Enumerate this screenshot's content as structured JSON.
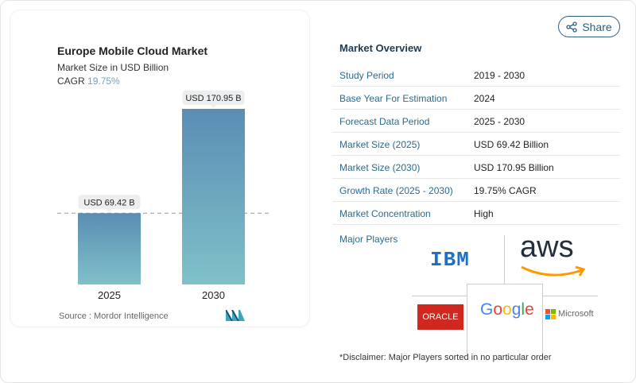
{
  "chart_data": {
    "type": "bar",
    "title": "Europe Mobile Cloud Market",
    "subtitle": "Market Size in USD Billion",
    "cagr_label": "CAGR",
    "cagr_value": "19.75%",
    "categories": [
      "2025",
      "2030"
    ],
    "values": [
      69.42,
      170.95
    ],
    "data_labels": [
      "USD 69.42 B",
      "USD 170.95 B"
    ],
    "ylim": [
      0,
      170.95
    ],
    "grid": false,
    "colors": {
      "bar_top": "#5b8db4",
      "bar_bottom": "#7fc1c9"
    }
  },
  "source": "Source :  Mordor Intelligence",
  "share_label": "Share",
  "overview": {
    "title": "Market Overview",
    "rows": [
      {
        "k": "Study Period",
        "v": "2019 - 2030"
      },
      {
        "k": "Base Year For Estimation",
        "v": "2024"
      },
      {
        "k": "Forecast Data Period",
        "v": "2025 - 2030"
      },
      {
        "k": "Market Size (2025)",
        "v": "USD 69.42 Billion"
      },
      {
        "k": "Market Size (2030)",
        "v": "USD 170.95 Billion"
      },
      {
        "k": "Growth Rate (2025 - 2030)",
        "v": "19.75% CAGR"
      },
      {
        "k": "Market Concentration",
        "v": "High"
      }
    ],
    "major_players_label": "Major Players",
    "players": [
      "IBM",
      "aws",
      "ORACLE",
      "Google",
      "Microsoft"
    ]
  },
  "disclaimer": "*Disclaimer: Major Players sorted in no particular order"
}
